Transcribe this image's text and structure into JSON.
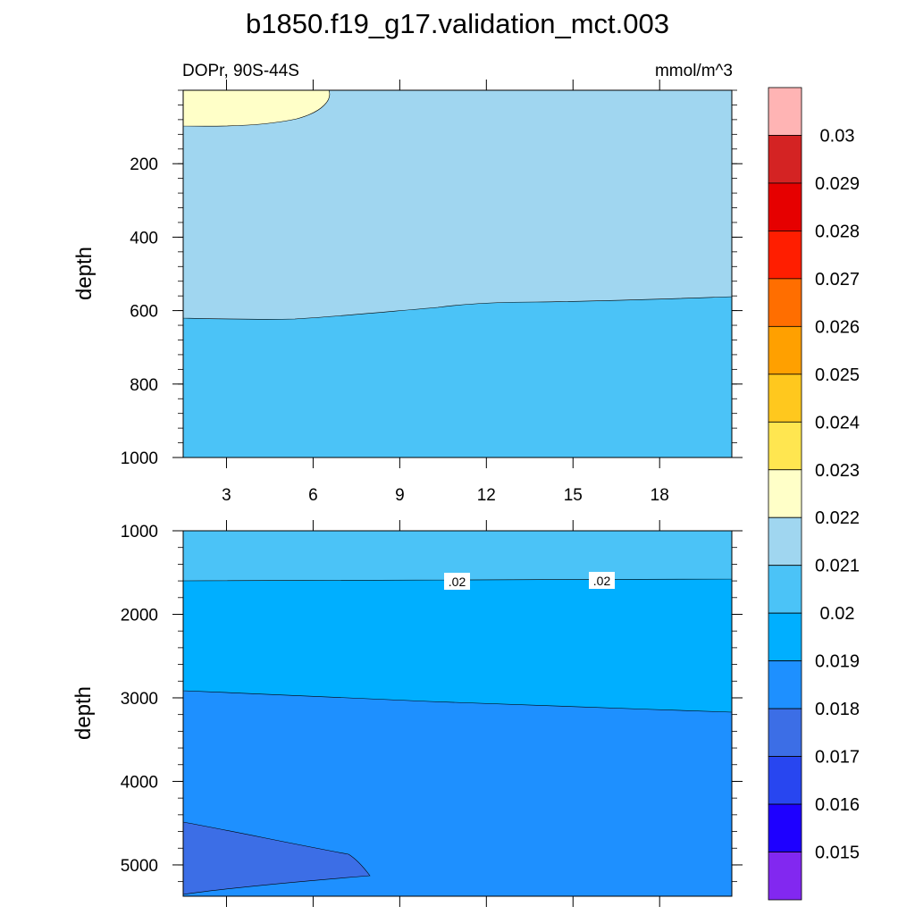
{
  "title": "b1850.f19_g17.validation_mct.003",
  "chart_data": {
    "type": "heatmap",
    "subtitle_left": "DOPr, 90S-44S",
    "subtitle_right": "mmol/m^3",
    "x_ticks": [
      "3",
      "6",
      "9",
      "12",
      "15",
      "18"
    ],
    "x_range": [
      1.5,
      20.5
    ],
    "panels": [
      {
        "ylabel": "depth",
        "y_range": [
          0,
          1000
        ],
        "y_inverted": true,
        "y_ticks": [
          "200",
          "400",
          "600",
          "800",
          "1000"
        ],
        "contour_labels": []
      },
      {
        "ylabel": "depth",
        "y_range": [
          1000,
          5375
        ],
        "y_inverted": true,
        "y_ticks": [
          "1000",
          "2000",
          "3000",
          "4000",
          "5000"
        ],
        "contour_labels": [
          ".02",
          ".02"
        ]
      }
    ],
    "colorbar": {
      "labels": [
        "0.03",
        "0.029",
        "0.028",
        "0.027",
        "0.026",
        "0.025",
        "0.024",
        "0.023",
        "0.022",
        "0.021",
        "0.02",
        "0.019",
        "0.018",
        "0.017",
        "0.016",
        "0.015"
      ],
      "colors": [
        "#FFB4B4",
        "#D42323",
        "#E60000",
        "#FF1E00",
        "#FF6E00",
        "#FFA000",
        "#FFC81E",
        "#FFE650",
        "#FFFFC8",
        "#A0D6F0",
        "#4BC3F7",
        "#00AFFF",
        "#1E90FF",
        "#3C6EE6",
        "#2846F0",
        "#1E00FF",
        "#8228F0"
      ]
    }
  }
}
